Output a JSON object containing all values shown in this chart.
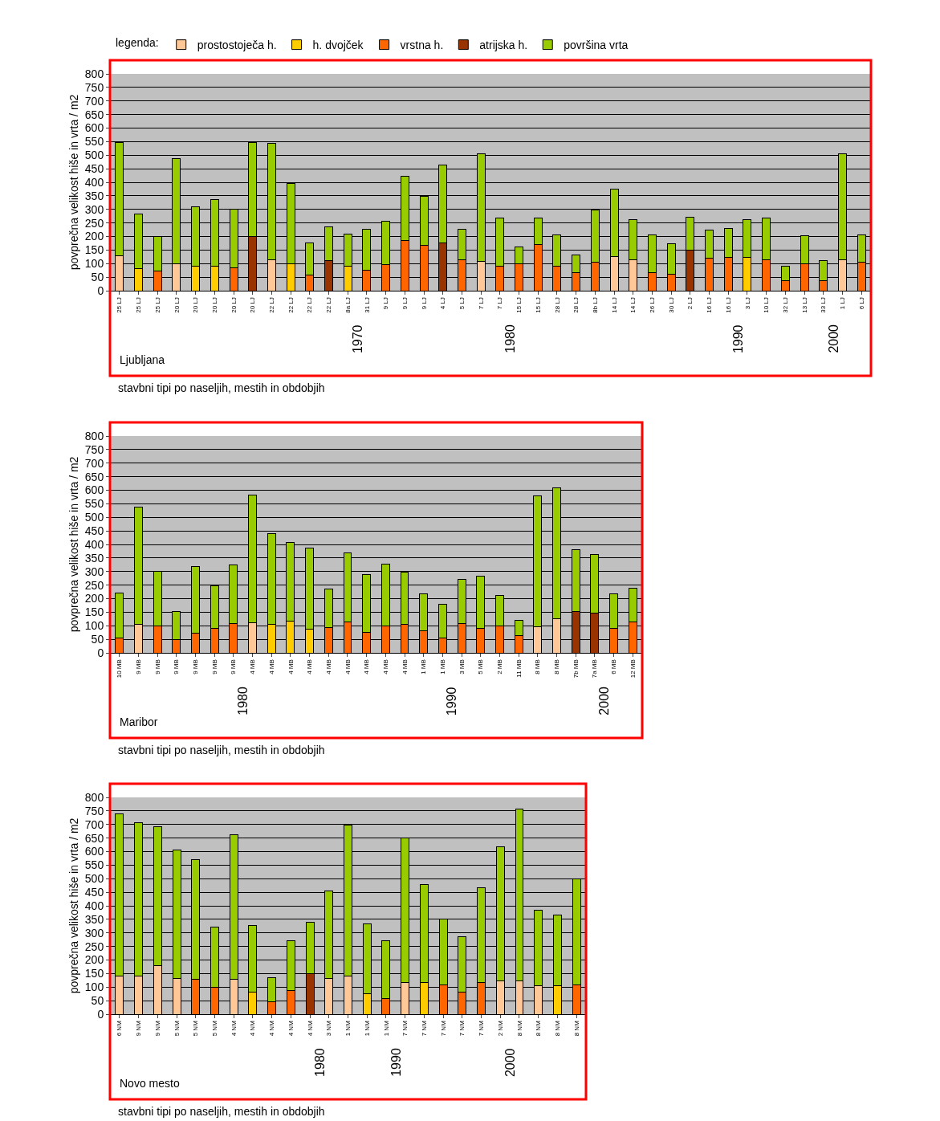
{
  "chart_data": [
    {
      "type": "bar",
      "stacked": true,
      "legend": "top",
      "legend_title": "legenda:",
      "ylabel": "povprečna velikost hiše in vrta / m2",
      "xlabel": "stavbni tipi po naseljih, mestih in obdobjih",
      "ylim": [
        0,
        800
      ],
      "yticks": [
        0,
        50,
        100,
        150,
        200,
        250,
        300,
        350,
        400,
        450,
        500,
        550,
        600,
        650,
        700,
        750,
        800
      ],
      "grid": "y",
      "categories": [
        "25 LJ",
        "25 LJ",
        "25 LJ",
        "20 LJ",
        "20 LJ",
        "20 LJ",
        "20 LJ",
        "20 LJ",
        "22 LJ",
        "22 LJ",
        "22 LJ",
        "22 LJ",
        "8a LJ",
        "31 LJ",
        "9 LJ",
        "9 LJ",
        "9 LJ",
        "4 LJ",
        "5 LJ",
        "7 LJ",
        "7 LJ",
        "15 LJ",
        "15 LJ",
        "28 LJ",
        "28 LJ",
        "8b LJ",
        "14 LJ",
        "14 LJ",
        "26 LJ",
        "30 LJ",
        "2 LJ",
        "16 LJ",
        "16 LJ",
        "3 LJ",
        "10 LJ",
        "32 LJ",
        "13 LJ",
        "33 LJ",
        "1 LJ",
        "6 LJ"
      ],
      "series": [
        {
          "name": "prostostoječa h.",
          "color": "#ffc896",
          "values": [
            130,
            null,
            null,
            100,
            null,
            null,
            null,
            null,
            115,
            null,
            null,
            null,
            null,
            null,
            null,
            null,
            null,
            null,
            null,
            107,
            null,
            null,
            null,
            null,
            null,
            null,
            127,
            114,
            null,
            null,
            null,
            null,
            null,
            null,
            null,
            null,
            null,
            null,
            114,
            null
          ]
        },
        {
          "name": "h. dvojček",
          "color": "#ffcc00",
          "values": [
            null,
            82,
            null,
            null,
            90,
            90,
            null,
            null,
            null,
            100,
            null,
            null,
            90,
            null,
            null,
            null,
            null,
            null,
            null,
            null,
            null,
            null,
            null,
            null,
            null,
            null,
            null,
            null,
            null,
            null,
            null,
            null,
            null,
            122,
            null,
            null,
            null,
            null,
            null,
            null
          ]
        },
        {
          "name": "vrstna h.",
          "color": "#ff6600",
          "values": [
            null,
            null,
            73,
            null,
            null,
            null,
            85,
            null,
            null,
            null,
            58,
            null,
            null,
            77,
            95,
            185,
            167,
            null,
            115,
            null,
            90,
            100,
            171,
            90,
            66,
            104,
            null,
            null,
            66,
            62,
            null,
            119,
            123,
            null,
            114,
            38,
            99,
            38,
            null,
            104
          ]
        },
        {
          "name": "atrijska h.",
          "color": "#993300",
          "values": [
            null,
            null,
            null,
            null,
            null,
            null,
            null,
            200,
            null,
            null,
            null,
            110,
            null,
            null,
            null,
            null,
            null,
            177,
            null,
            null,
            null,
            null,
            null,
            null,
            null,
            null,
            null,
            null,
            null,
            null,
            150,
            null,
            null,
            null,
            null,
            null,
            null,
            null,
            null,
            null
          ]
        },
        {
          "name": "površina vrta",
          "color": "#99cc00",
          "values": [
            418,
            201,
            127,
            387,
            220,
            245,
            215,
            348,
            428,
            295,
            119,
            127,
            120,
            151,
            161,
            238,
            181,
            288,
            113,
            397,
            177,
            61,
            96,
            116,
            67,
            195,
            247,
            148,
            140,
            112,
            121,
            106,
            107,
            140,
            153,
            52,
            103,
            72,
            390,
            102
          ]
        }
      ],
      "annotations": [
        "Ljubljana",
        "1970",
        "1980",
        "1990",
        "2000"
      ]
    },
    {
      "type": "bar",
      "stacked": true,
      "ylabel": "povprečna velikost hiše in vrta / m2",
      "xlabel": "stavbni tipi po naseljih, mestih in obdobjih",
      "ylim": [
        0,
        800
      ],
      "yticks": [
        0,
        50,
        100,
        150,
        200,
        250,
        300,
        350,
        400,
        450,
        500,
        550,
        600,
        650,
        700,
        750,
        800
      ],
      "grid": "y",
      "categories": [
        "10 MB",
        "9 MB",
        "9 MB",
        "9 MB",
        "9 MB",
        "9 MB",
        "9 MB",
        "4 MB",
        "4 MB",
        "4 MB",
        "4 MB",
        "4 MB",
        "4 MB",
        "4 MB",
        "4 MB",
        "4 MB",
        "1 MB",
        "1 MB",
        "3 MB",
        "5 MB",
        "2 MB",
        "11 MB",
        "8 MB",
        "8 MB",
        "7b MB",
        "7a MB",
        "6 MB",
        "12 MB"
      ],
      "series": [
        {
          "color": "#ffc896",
          "values": [
            null,
            105,
            null,
            null,
            null,
            null,
            null,
            112,
            null,
            null,
            null,
            null,
            null,
            null,
            null,
            null,
            null,
            null,
            null,
            null,
            null,
            null,
            96,
            127,
            null,
            null,
            null,
            null
          ]
        },
        {
          "color": "#ffcc00",
          "values": [
            null,
            null,
            null,
            null,
            null,
            null,
            null,
            null,
            105,
            118,
            86,
            null,
            null,
            null,
            null,
            null,
            null,
            null,
            null,
            null,
            null,
            null,
            null,
            null,
            null,
            null,
            null,
            null
          ]
        },
        {
          "color": "#ff6600",
          "values": [
            54,
            null,
            100,
            50,
            72,
            91,
            109,
            null,
            null,
            null,
            null,
            92,
            113,
            76,
            100,
            105,
            82,
            54,
            109,
            91,
            100,
            64,
            null,
            null,
            null,
            null,
            91,
            113
          ]
        },
        {
          "color": "#993300",
          "values": [
            null,
            null,
            null,
            null,
            null,
            null,
            null,
            null,
            null,
            null,
            null,
            null,
            null,
            null,
            null,
            null,
            null,
            null,
            null,
            null,
            null,
            null,
            null,
            null,
            152,
            147,
            null,
            null
          ]
        },
        {
          "color": "#99cc00",
          "values": [
            168,
            432,
            200,
            102,
            247,
            157,
            214,
            470,
            334,
            289,
            302,
            143,
            257,
            214,
            227,
            192,
            135,
            126,
            163,
            191,
            112,
            55,
            482,
            483,
            228,
            217,
            126,
            126
          ]
        }
      ],
      "annotations": [
        "Maribor",
        "1980",
        "1990",
        "2000"
      ]
    },
    {
      "type": "bar",
      "stacked": true,
      "ylabel": "povprečna velikost hiše in vrta / m2",
      "xlabel": "stavbni tipi po naseljih, mestih in obdobjih",
      "ylim": [
        0,
        800
      ],
      "yticks": [
        0,
        50,
        100,
        150,
        200,
        250,
        300,
        350,
        400,
        450,
        500,
        550,
        600,
        650,
        700,
        750,
        800
      ],
      "grid": "y",
      "categories": [
        "6 NM",
        "9 NM",
        "9 NM",
        "5 NM",
        "5 NM",
        "5 NM",
        "4 NM",
        "4 NM",
        "4 NM",
        "4 NM",
        "4 NM",
        "3 NM",
        "1 NM",
        "1 NM",
        "1 NM",
        "7 NM",
        "7 NM",
        "7 NM",
        "7 NM",
        "7 NM",
        "2 NM",
        "8 NM",
        "8 NM",
        "8 NM",
        "8 NM"
      ],
      "series": [
        {
          "color": "#ffc896",
          "values": [
            142,
            142,
            178,
            133,
            null,
            null,
            130,
            null,
            null,
            null,
            null,
            133,
            142,
            null,
            null,
            118,
            null,
            null,
            null,
            null,
            122,
            122,
            105,
            null,
            null
          ]
        },
        {
          "color": "#ffcc00",
          "values": [
            null,
            null,
            null,
            null,
            null,
            null,
            null,
            81,
            null,
            null,
            null,
            null,
            null,
            77,
            null,
            null,
            118,
            null,
            null,
            null,
            null,
            null,
            null,
            105,
            null
          ]
        },
        {
          "color": "#ff6600",
          "values": [
            null,
            null,
            null,
            null,
            130,
            100,
            null,
            null,
            45,
            86,
            null,
            null,
            null,
            null,
            59,
            null,
            null,
            109,
            81,
            118,
            null,
            null,
            null,
            null,
            109
          ]
        },
        {
          "color": "#993300",
          "values": [
            null,
            null,
            null,
            null,
            null,
            null,
            null,
            null,
            null,
            null,
            150,
            null,
            null,
            null,
            null,
            null,
            null,
            null,
            null,
            null,
            null,
            null,
            null,
            null,
            null
          ]
        },
        {
          "color": "#99cc00",
          "values": [
            597,
            565,
            515,
            473,
            439,
            221,
            531,
            246,
            90,
            186,
            188,
            321,
            555,
            255,
            213,
            532,
            362,
            241,
            205,
            348,
            497,
            635,
            279,
            260,
            389
          ]
        }
      ],
      "annotations": [
        "Novo mesto",
        "1980",
        "1990",
        "2000"
      ]
    }
  ]
}
